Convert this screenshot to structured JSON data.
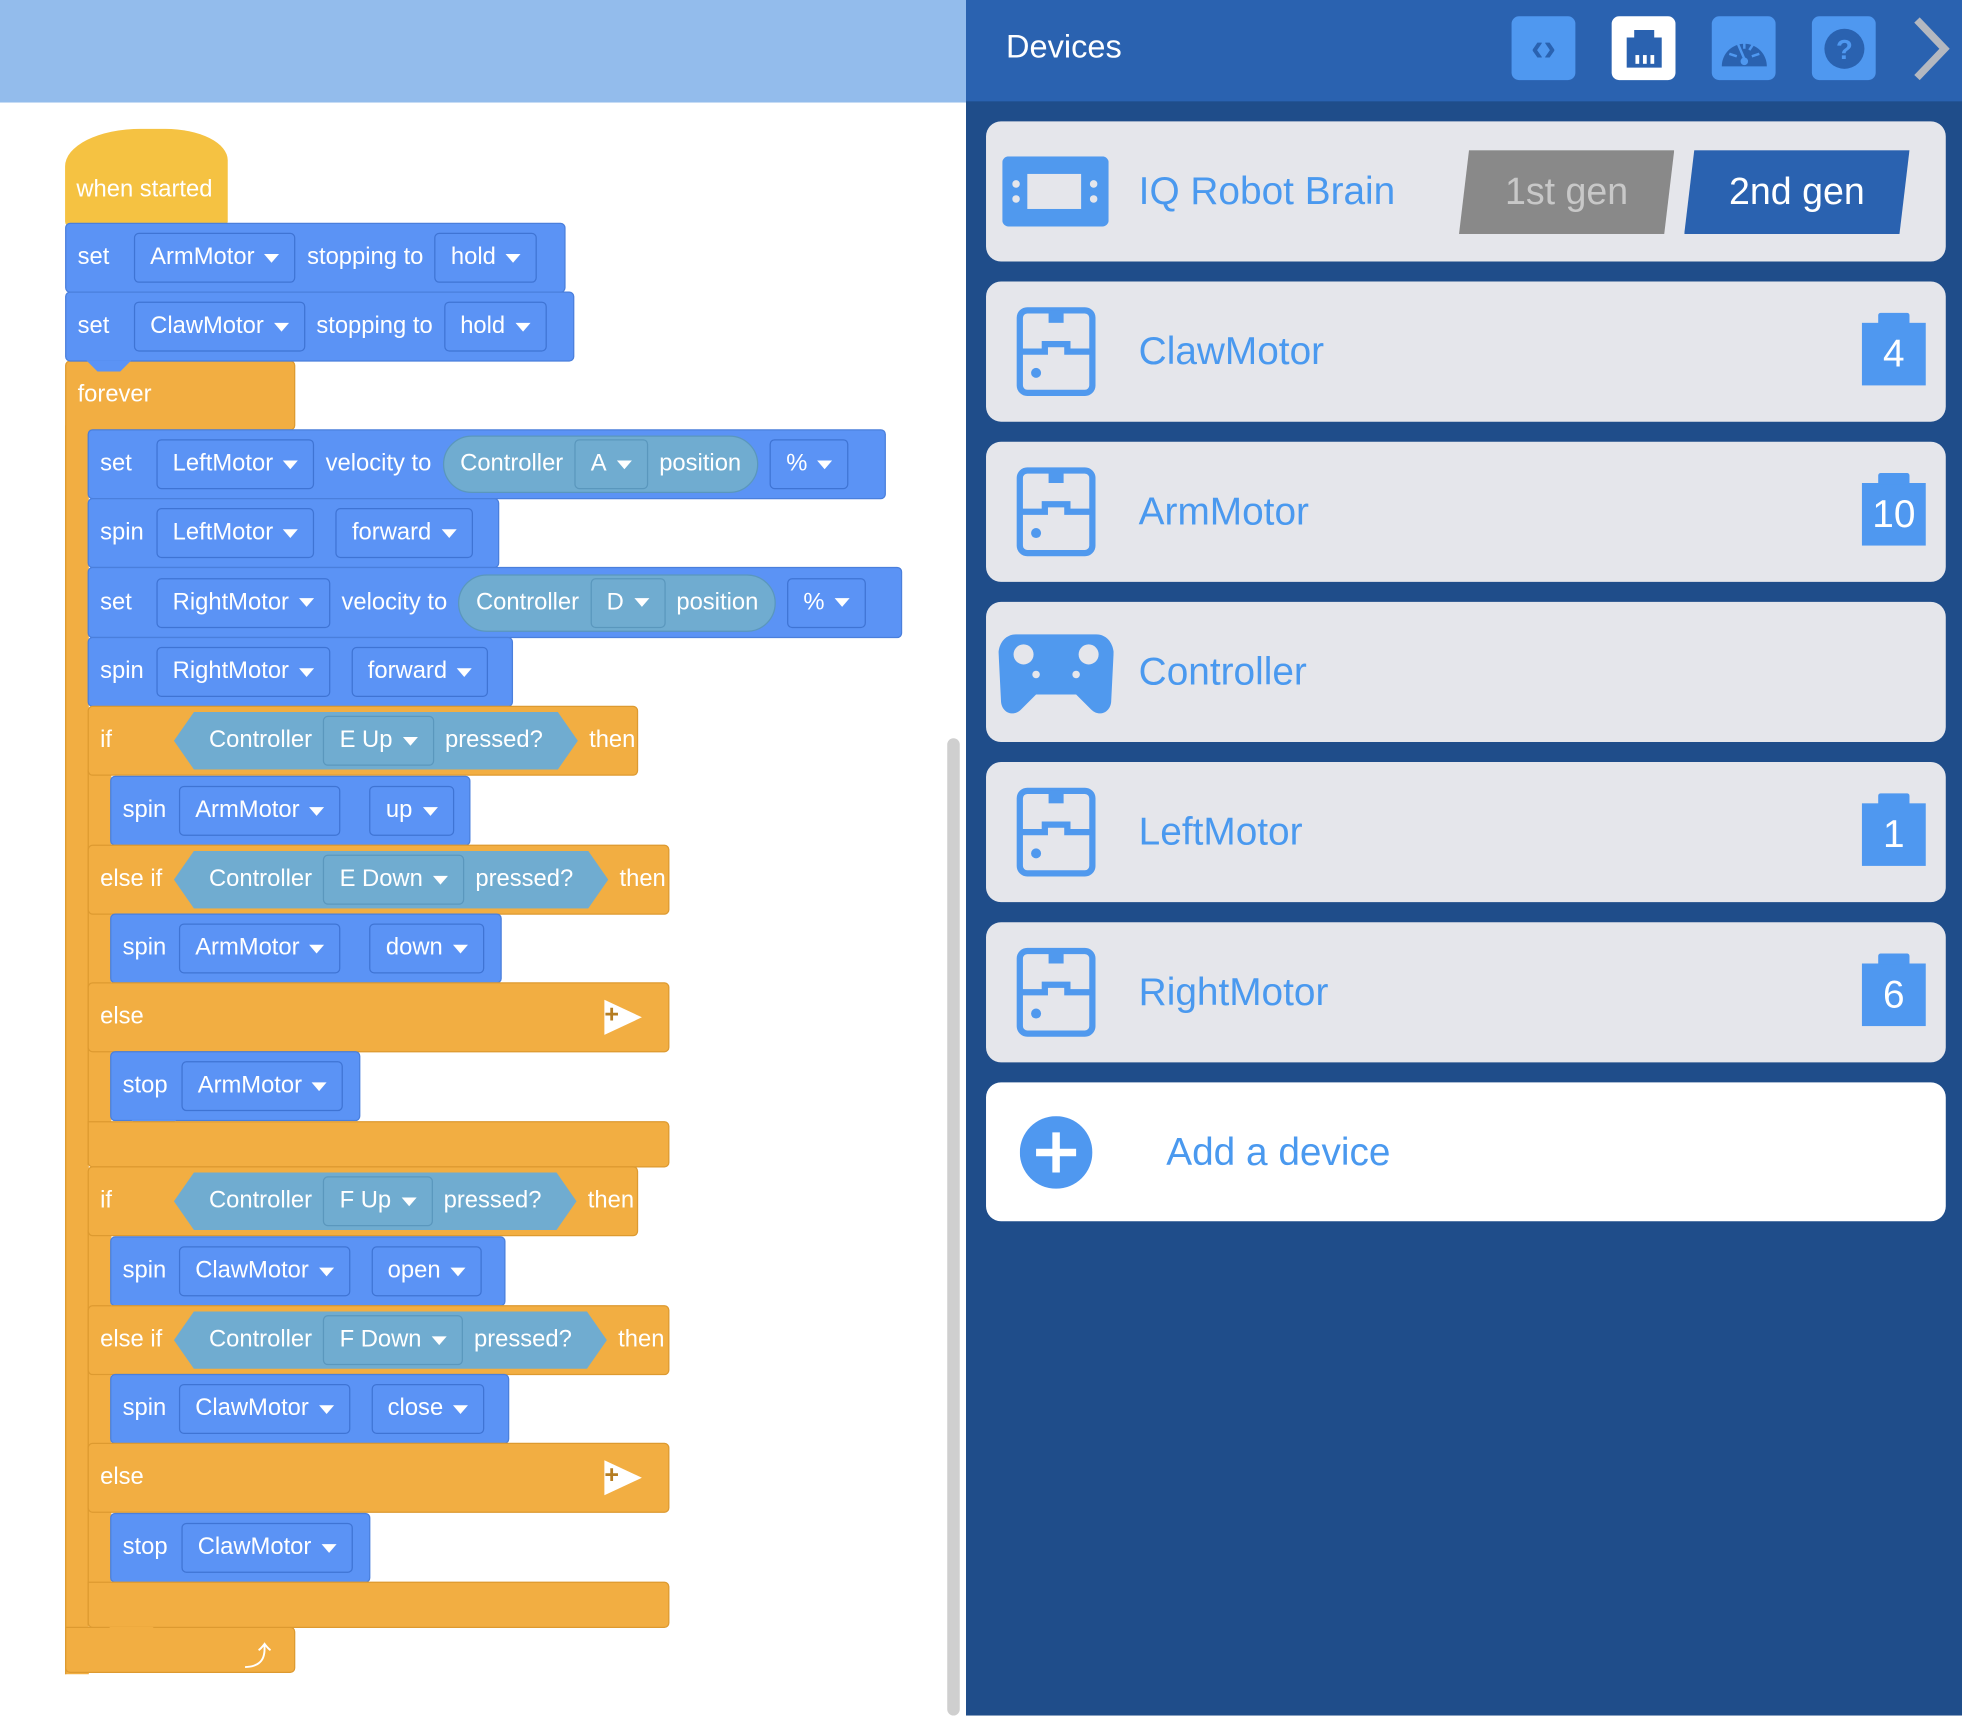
{
  "code": {
    "hat": "when started",
    "rows": [
      {
        "verb": "set",
        "device": "ArmMotor",
        "text": "stopping to",
        "value": "hold"
      },
      {
        "verb": "set",
        "device": "ClawMotor",
        "text": "stopping to",
        "value": "hold"
      },
      {
        "verb": "forever"
      },
      {
        "verb": "set",
        "device": "LeftMotor",
        "text": "velocity to",
        "sensor": "Controller",
        "port": "A",
        "suffix": "position",
        "unit": "%"
      },
      {
        "verb": "spin",
        "device": "LeftMotor",
        "value": "forward"
      },
      {
        "verb": "set",
        "device": "RightMotor",
        "text": "velocity to",
        "sensor": "Controller",
        "port": "D",
        "suffix": "position",
        "unit": "%"
      },
      {
        "verb": "spin",
        "device": "RightMotor",
        "value": "forward"
      },
      {
        "verb": "if",
        "sensor": "Controller",
        "port": "E Up",
        "suffix": "pressed?",
        "then": "then"
      },
      {
        "verb": "spin",
        "device": "ArmMotor",
        "value": "up"
      },
      {
        "verb": "else if",
        "sensor": "Controller",
        "port": "E Down",
        "suffix": "pressed?",
        "then": "then"
      },
      {
        "verb": "spin",
        "device": "ArmMotor",
        "value": "down"
      },
      {
        "verb": "else"
      },
      {
        "verb": "stop",
        "device": "ArmMotor"
      },
      {
        "verb": "if",
        "sensor": "Controller",
        "port": "F Up",
        "suffix": "pressed?",
        "then": "then"
      },
      {
        "verb": "spin",
        "device": "ClawMotor",
        "value": "open"
      },
      {
        "verb": "else if",
        "sensor": "Controller",
        "port": "F Down",
        "suffix": "pressed?",
        "then": "then"
      },
      {
        "verb": "spin",
        "device": "ClawMotor",
        "value": "close"
      },
      {
        "verb": "else"
      },
      {
        "verb": "stop",
        "device": "ClawMotor"
      }
    ]
  },
  "devices": {
    "title": "Devices",
    "toolbar": [
      "code-view-icon",
      "devices-icon",
      "dashboard-icon",
      "help-icon",
      "chevron-right-icon"
    ],
    "brain": {
      "name": "IQ Robot Brain",
      "gen1": "1st gen",
      "gen2": "2nd gen",
      "selected": "2nd gen"
    },
    "items": [
      {
        "name": "ClawMotor",
        "port": "4"
      },
      {
        "name": "ArmMotor",
        "port": "10"
      },
      {
        "name": "Controller"
      },
      {
        "name": "LeftMotor",
        "port": "1"
      },
      {
        "name": "RightMotor",
        "port": "6"
      }
    ],
    "add": "Add a device"
  },
  "colors": {
    "motion": "#5b93f5",
    "control": "#f2ae42",
    "events": "#f5c242",
    "sensing": "#70acd0",
    "panel": "#1f4d8a",
    "header": "#2a62b0",
    "accent": "#4a99ef"
  }
}
